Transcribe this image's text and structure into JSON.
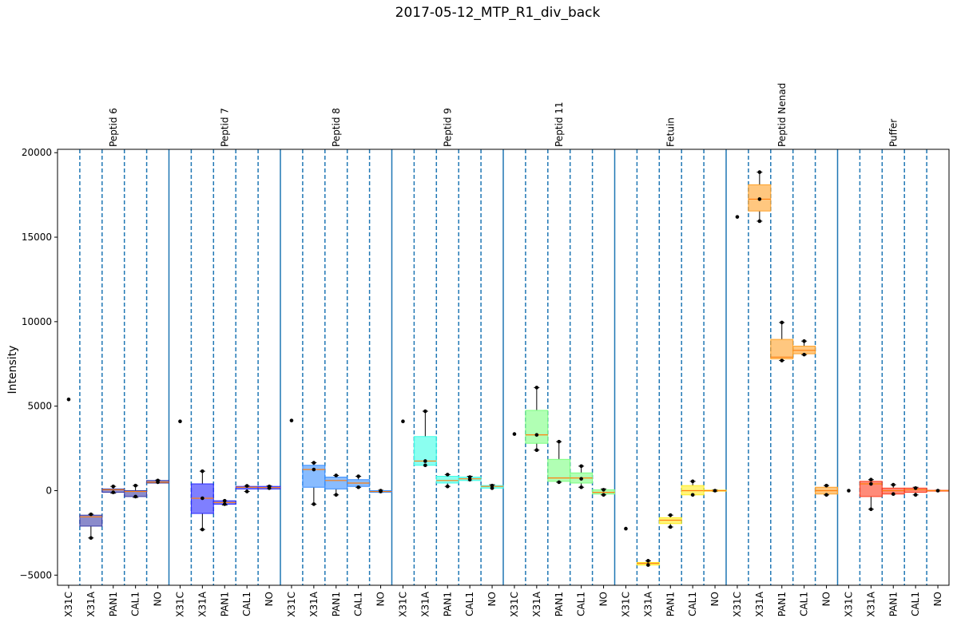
{
  "chart_data": {
    "type": "box",
    "title": "2017-05-12_MTP_R1_div_back",
    "xlabel": "",
    "ylabel": "Intensity",
    "ylim": [
      -5600,
      20200
    ],
    "yticks": [
      -5000,
      0,
      5000,
      10000,
      15000,
      20000
    ],
    "categories": [
      "X31C",
      "X31A",
      "PAN1",
      "CAL1",
      "NO"
    ],
    "groups": [
      {
        "name": "Peptid 6",
        "color": "#3d3da8",
        "boxes": [
          {
            "category": "X31C",
            "points": [
              5400
            ]
          },
          {
            "category": "X31A",
            "q1": -2100,
            "median": -1550,
            "q3": -1450,
            "whislo": -2800,
            "whishi": -1400,
            "points": [
              -2800,
              -1400
            ]
          },
          {
            "category": "PAN1",
            "q1": -100,
            "median": 50,
            "q3": 100,
            "whislo": -150,
            "whishi": 250,
            "points": [
              250,
              -100
            ]
          },
          {
            "category": "CAL1",
            "q1": -350,
            "median": -50,
            "q3": 0,
            "whislo": -400,
            "whishi": 300,
            "points": [
              300,
              -350
            ]
          },
          {
            "category": "NO",
            "q1": 450,
            "median": 500,
            "q3": 600,
            "whislo": 450,
            "whishi": 620,
            "points": [
              600,
              500
            ]
          }
        ]
      },
      {
        "name": "Peptid 7",
        "color": "#2a2aff",
        "boxes": [
          {
            "category": "X31C",
            "points": [
              4100
            ]
          },
          {
            "category": "X31A",
            "q1": -1350,
            "median": -450,
            "q3": 400,
            "whislo": -2300,
            "whishi": 1150,
            "points": [
              1150,
              -2300,
              -450
            ]
          },
          {
            "category": "PAN1",
            "q1": -800,
            "median": -700,
            "q3": -600,
            "whislo": -850,
            "whishi": -600,
            "points": [
              -800,
              -600
            ]
          },
          {
            "category": "CAL1",
            "q1": 100,
            "median": 200,
            "q3": 250,
            "whislo": -50,
            "whishi": 280,
            "points": [
              280,
              -50
            ]
          },
          {
            "category": "NO",
            "q1": 100,
            "median": 180,
            "q3": 250,
            "whislo": 100,
            "whishi": 280,
            "points": [
              250,
              150
            ]
          }
        ]
      },
      {
        "name": "Peptid 8",
        "color": "#3a8fff",
        "boxes": [
          {
            "category": "X31C",
            "points": [
              4150
            ]
          },
          {
            "category": "X31A",
            "q1": 200,
            "median": 1250,
            "q3": 1500,
            "whislo": -800,
            "whishi": 1650,
            "points": [
              1650,
              1250,
              -800
            ]
          },
          {
            "category": "PAN1",
            "q1": 100,
            "median": 600,
            "q3": 800,
            "whislo": -250,
            "whishi": 900,
            "points": [
              900,
              -250
            ]
          },
          {
            "category": "CAL1",
            "q1": 250,
            "median": 450,
            "q3": 650,
            "whislo": 200,
            "whishi": 850,
            "points": [
              850,
              200
            ]
          },
          {
            "category": "NO",
            "q1": -100,
            "median": -50,
            "q3": 0,
            "whislo": -100,
            "whishi": 20,
            "points": [
              0,
              -50
            ]
          }
        ]
      },
      {
        "name": "Peptid 9",
        "color": "#3dffe6",
        "boxes": [
          {
            "category": "X31C",
            "points": [
              4100
            ]
          },
          {
            "category": "X31A",
            "q1": 1500,
            "median": 1750,
            "q3": 3200,
            "whislo": 1500,
            "whishi": 4700,
            "points": [
              4700,
              1750,
              1500
            ]
          },
          {
            "category": "PAN1",
            "q1": 450,
            "median": 600,
            "q3": 850,
            "whislo": 250,
            "whishi": 950,
            "points": [
              950,
              250
            ]
          },
          {
            "category": "CAL1",
            "q1": 600,
            "median": 700,
            "q3": 800,
            "whislo": 600,
            "whishi": 850,
            "points": [
              800,
              650
            ]
          },
          {
            "category": "NO",
            "q1": 150,
            "median": 250,
            "q3": 300,
            "whislo": 150,
            "whishi": 350,
            "points": [
              300,
              150
            ]
          }
        ]
      },
      {
        "name": "Peptid 11",
        "color": "#7dff82",
        "boxes": [
          {
            "category": "X31C",
            "points": [
              3350
            ]
          },
          {
            "category": "X31A",
            "q1": 2800,
            "median": 3300,
            "q3": 4750,
            "whislo": 2400,
            "whishi": 6100,
            "points": [
              6100,
              3300,
              2400
            ]
          },
          {
            "category": "PAN1",
            "q1": 550,
            "median": 750,
            "q3": 1850,
            "whislo": 500,
            "whishi": 2900,
            "points": [
              2900,
              500
            ]
          },
          {
            "category": "CAL1",
            "q1": 450,
            "median": 750,
            "q3": 1050,
            "whislo": 200,
            "whishi": 1450,
            "points": [
              1450,
              200,
              700
            ]
          },
          {
            "category": "NO",
            "q1": -200,
            "median": -100,
            "q3": 50,
            "whislo": -250,
            "whishi": 100,
            "points": [
              50,
              -250
            ]
          }
        ]
      },
      {
        "name": "Fetuin",
        "color": "#ffee22",
        "boxes": [
          {
            "category": "X31C",
            "points": [
              -2250
            ]
          },
          {
            "category": "X31A",
            "q1": -4400,
            "median": -4300,
            "q3": -4250,
            "whislo": -4400,
            "whishi": -4150,
            "points": [
              -4150,
              -4400
            ]
          },
          {
            "category": "PAN1",
            "q1": -1950,
            "median": -1750,
            "q3": -1600,
            "whislo": -2150,
            "whishi": -1450,
            "points": [
              -1450,
              -2150
            ]
          },
          {
            "category": "CAL1",
            "q1": -250,
            "median": 0,
            "q3": 300,
            "whislo": -250,
            "whishi": 550,
            "points": [
              550,
              -250
            ]
          },
          {
            "category": "NO",
            "q1": -30,
            "median": 0,
            "q3": 30,
            "whislo": -50,
            "whishi": 50,
            "points": [
              0
            ]
          }
        ]
      },
      {
        "name": "Peptid Nenad",
        "color": "#ffa22a",
        "boxes": [
          {
            "category": "X31C",
            "points": [
              16200
            ]
          },
          {
            "category": "X31A",
            "q1": 16550,
            "median": 17250,
            "q3": 18100,
            "whislo": 15950,
            "whishi": 18850,
            "points": [
              18850,
              17250,
              15950
            ]
          },
          {
            "category": "PAN1",
            "q1": 7800,
            "median": 7900,
            "q3": 8950,
            "whislo": 7700,
            "whishi": 9950,
            "points": [
              9950,
              7700
            ]
          },
          {
            "category": "CAL1",
            "q1": 8100,
            "median": 8300,
            "q3": 8550,
            "whislo": 8050,
            "whishi": 8850,
            "points": [
              8850,
              8050
            ]
          },
          {
            "category": "NO",
            "q1": -200,
            "median": 0,
            "q3": 200,
            "whislo": -250,
            "whishi": 300,
            "points": [
              300,
              -250
            ]
          }
        ]
      },
      {
        "name": "Puffer",
        "color": "#ff3d1f",
        "boxes": [
          {
            "category": "X31C",
            "points": [
              0
            ]
          },
          {
            "category": "X31A",
            "q1": -350,
            "median": 400,
            "q3": 550,
            "whislo": -1100,
            "whishi": 650,
            "points": [
              650,
              400,
              -1100
            ]
          },
          {
            "category": "PAN1",
            "q1": -200,
            "median": 0,
            "q3": 150,
            "whislo": -200,
            "whishi": 350,
            "points": [
              350,
              -200
            ]
          },
          {
            "category": "CAL1",
            "q1": -100,
            "median": 50,
            "q3": 150,
            "whislo": -250,
            "whishi": 200,
            "points": [
              150,
              -250
            ]
          },
          {
            "category": "NO",
            "q1": -20,
            "median": 0,
            "q3": 20,
            "whislo": -30,
            "whishi": 30,
            "points": [
              0
            ]
          }
        ]
      }
    ],
    "grid": false,
    "legend": "none"
  }
}
